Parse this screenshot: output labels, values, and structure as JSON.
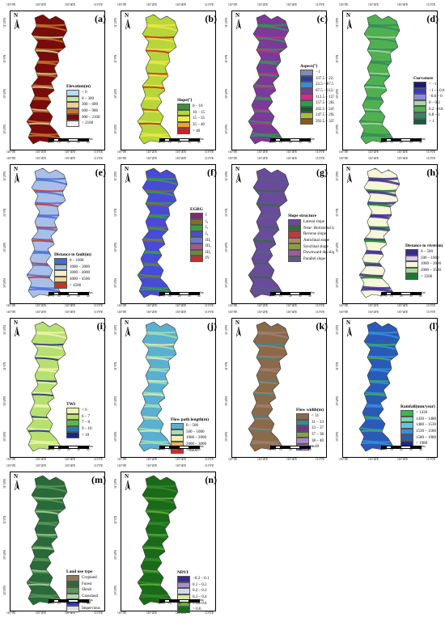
{
  "coords": {
    "top": [
      "110°0'E",
      "110°20'E",
      "110°40'E",
      "111°0'E"
    ],
    "left": [
      "31°20'N",
      "31°0'N",
      "30°40'N",
      "30°20'N"
    ],
    "scale": [
      "0",
      "5",
      "10",
      "20",
      "30",
      "40"
    ],
    "scale_unit": "km"
  },
  "north_label": "N",
  "panels": [
    {
      "letter": "(a)",
      "legend_title": "Elevation(m)",
      "items": [
        {
          "color": "#b5dcf3",
          "label": "< 0"
        },
        {
          "color": "#c7e8a0",
          "label": "0 – 300"
        },
        {
          "color": "#e9d29a",
          "label": "300 – 600"
        },
        {
          "color": "#c47a2e",
          "label": "600 – 900"
        },
        {
          "color": "#7a0b0b",
          "label": "900 – 2100"
        },
        {
          "color": "#f2f2f2",
          "label": "> 2100"
        }
      ]
    },
    {
      "letter": "(b)",
      "legend_title": "Slope(°)",
      "items": [
        {
          "color": "#3d8f3a",
          "label": "0 – 10"
        },
        {
          "color": "#b7d63a",
          "label": "10 – 15"
        },
        {
          "color": "#f0e94a",
          "label": "15 – 35"
        },
        {
          "color": "#f0a030",
          "label": "35 – 40"
        },
        {
          "color": "#d22020",
          "label": "> 40"
        }
      ]
    },
    {
      "letter": "(c)",
      "legend_title": "Aspect(°)",
      "items": [
        {
          "color": "#7d8fb0",
          "label": "−1"
        },
        {
          "color": "#2a3da8",
          "label": "337.5 – 22.5"
        },
        {
          "color": "#3a8ad8",
          "label": "22.5 – 67.5"
        },
        {
          "color": "#7b3a98",
          "label": "67.5 – 112.5"
        },
        {
          "color": "#d8288a",
          "label": "112.5 – 157.5"
        },
        {
          "color": "#28a048",
          "label": "157.5 – 202.5"
        },
        {
          "color": "#1a5a28",
          "label": "202.5 – 247.5"
        },
        {
          "color": "#a8c030",
          "label": "247.5 – 292.5"
        },
        {
          "color": "#8a5a1a",
          "label": "292.5 – 337.5"
        }
      ]
    },
    {
      "letter": "(d)",
      "legend_title": "Curvature",
      "items": [
        {
          "color": "#1a1a78",
          "label": "< −1"
        },
        {
          "color": "#3a3ac0",
          "label": "−1 – −0.6"
        },
        {
          "color": "#8a8ad8",
          "label": "−0.6 – 0"
        },
        {
          "color": "#a8d8a0",
          "label": "0 – 0.2"
        },
        {
          "color": "#50b050",
          "label": "0.2 – 0.8"
        },
        {
          "color": "#308a60",
          "label": "0.8 – 1"
        },
        {
          "color": "#1a5a40",
          "label": "> 1"
        }
      ]
    },
    {
      "letter": "(e)",
      "legend_title": "Distance to fault(m)",
      "items": [
        {
          "color": "#4a6ad0",
          "label": "0 – 1000"
        },
        {
          "color": "#a8c0e8",
          "label": "1000 – 3000"
        },
        {
          "color": "#f6f0c8",
          "label": "3000 – 4000"
        },
        {
          "color": "#f0d88a",
          "label": "4000 – 4500"
        },
        {
          "color": "#d03020",
          "label": "> 4500"
        }
      ]
    },
    {
      "letter": "(f)",
      "legend_title": "EGRG",
      "items": [
        {
          "color": "#7a2a7a",
          "label": "I"
        },
        {
          "color": "#8a6a2a",
          "label": "I₂"
        },
        {
          "color": "#3aa03a",
          "label": "I₃"
        },
        {
          "color": "#4a4ad8",
          "label": "I₄"
        },
        {
          "color": "#6a7ad8",
          "label": "III₁"
        },
        {
          "color": "#a05a8a",
          "label": "III₂"
        },
        {
          "color": "#6a8a3a",
          "label": "III₃"
        },
        {
          "color": "#c03030",
          "label": "IV"
        }
      ]
    },
    {
      "letter": "(g)",
      "legend_title": "Slope structure",
      "items": [
        {
          "color": "#6a4a9a",
          "label": "Lateral slope"
        },
        {
          "color": "#3a6a3a",
          "label": "Near- Horizontal layered"
        },
        {
          "color": "#c03a3a",
          "label": "Reverse slope"
        },
        {
          "color": "#b08a5a",
          "label": "Anticlinal slope"
        },
        {
          "color": "#8aa04a",
          "label": "Synclinal slope"
        },
        {
          "color": "#a05a9a",
          "label": "Downward dip slope"
        },
        {
          "color": "#5a5a8a",
          "label": "Parallel slope"
        }
      ]
    },
    {
      "letter": "(h)",
      "legend_title": "Distance to river(m)",
      "items": [
        {
          "color": "#3a2a8a",
          "label": "0 – 500"
        },
        {
          "color": "#d8c8f0",
          "label": "500 – 1000"
        },
        {
          "color": "#f6f6d8",
          "label": "1000 – 2000"
        },
        {
          "color": "#a8d890",
          "label": "2000 – 3500"
        },
        {
          "color": "#1a7a2a",
          "label": "> 3500"
        }
      ]
    },
    {
      "letter": "(i)",
      "legend_title": "TWI",
      "items": [
        {
          "color": "#f0f6b0",
          "label": "< 6"
        },
        {
          "color": "#b8e070",
          "label": "6 – 7"
        },
        {
          "color": "#5ab848",
          "label": "7 – 8"
        },
        {
          "color": "#2a7ab0",
          "label": "9 – 10"
        },
        {
          "color": "#1a2a7a",
          "label": "> 10"
        }
      ]
    },
    {
      "letter": "(j)",
      "legend_title": "Flow path length(m)",
      "items": [
        {
          "color": "#5ab0d0",
          "label": "0 – 500"
        },
        {
          "color": "#a8e0b0",
          "label": "500 – 1000"
        },
        {
          "color": "#f0f0b0",
          "label": "1000 – 2000"
        },
        {
          "color": "#f0b060",
          "label": "2000 – 3000"
        },
        {
          "color": "#d03020",
          "label": "> 3000"
        }
      ]
    },
    {
      "letter": "(k)",
      "legend_title": "Flow width(m)",
      "items": [
        {
          "color": "#8a6a4a",
          "label": "< 31"
        },
        {
          "color": "#3a8a8a",
          "label": "31 – 33"
        },
        {
          "color": "#6a3a8a",
          "label": "33 – 37"
        },
        {
          "color": "#8aa040",
          "label": "37 – 38"
        },
        {
          "color": "#a08ad0",
          "label": "38 – 40"
        },
        {
          "color": "#d870c0",
          "label": "> 40"
        }
      ]
    },
    {
      "letter": "(l)",
      "legend_title": "Rainfall(mm/year)",
      "items": [
        {
          "color": "#3ab848",
          "label": "< 1430"
        },
        {
          "color": "#7ad8b0",
          "label": "1430 – 1480"
        },
        {
          "color": "#60c8d8",
          "label": "1480 – 1530"
        },
        {
          "color": "#3a90d8",
          "label": "1530 – 1580"
        },
        {
          "color": "#2a5ab8",
          "label": "1580 – 1980"
        },
        {
          "color": "#1a2a8a",
          "label": "> 1980"
        }
      ]
    },
    {
      "letter": "(m)",
      "legend_title": "Land use type",
      "items": [
        {
          "color": "#8a7a5a",
          "label": "Cropland"
        },
        {
          "color": "#2a6a3a",
          "label": "Forest"
        },
        {
          "color": "#5a9a5a",
          "label": "Shrub"
        },
        {
          "color": "#b0d8a0",
          "label": "Grassland"
        },
        {
          "color": "#2a3ac0",
          "label": "Water"
        },
        {
          "color": "#e0e0e0",
          "label": "Impervious"
        }
      ]
    },
    {
      "letter": "(n)",
      "legend_title": "NDVI",
      "items": [
        {
          "color": "#3a2a8a",
          "label": "−0.2 – 0.1"
        },
        {
          "color": "#a890c8",
          "label": "0.1 – 0.2"
        },
        {
          "color": "#d0d8f0",
          "label": "0.2 – 0.3"
        },
        {
          "color": "#d8e8a0",
          "label": "0.3 – 0.4"
        },
        {
          "color": "#6ab040",
          "label": "0.4 – 0.6"
        },
        {
          "color": "#1a6a1a",
          "label": "> 0.6"
        }
      ]
    }
  ]
}
